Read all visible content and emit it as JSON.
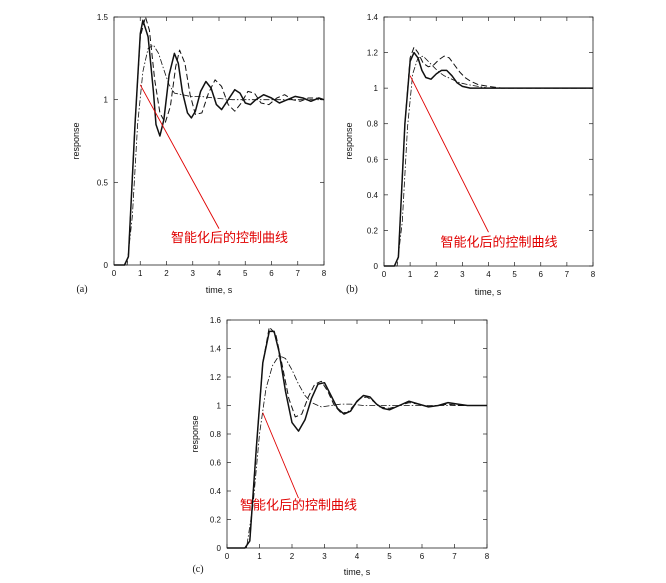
{
  "chart_data": [
    {
      "panel": "(a)",
      "type": "line",
      "xlabel": "time, s",
      "ylabel": "response",
      "xlim": [
        0,
        8
      ],
      "ylim": [
        0,
        1.5
      ],
      "xticks": [
        0,
        1,
        2,
        3,
        4,
        5,
        6,
        7,
        8
      ],
      "yticks": [
        0,
        0.5,
        1,
        1.5
      ],
      "ytick_labels": [
        "0",
        "0.5",
        "1",
        "1.5"
      ],
      "annotation": {
        "text": "智能化后的控制曲线",
        "text_at": [
          4.4,
          0.14
        ],
        "arrow_from": [
          4.0,
          0.22
        ],
        "arrow_to": [
          1.0,
          1.09
        ]
      },
      "series": [
        {
          "style": "solid",
          "width": 1.5,
          "x": [
            0,
            0.4,
            0.55,
            0.8,
            1.0,
            1.1,
            1.3,
            1.5,
            1.6,
            1.75,
            1.9,
            2.1,
            2.3,
            2.45,
            2.6,
            2.8,
            2.95,
            3.1,
            3.3,
            3.5,
            3.7,
            3.9,
            4.1,
            4.35,
            4.6,
            4.8,
            5.0,
            5.2,
            5.4,
            5.7,
            6.0,
            6.3,
            6.6,
            6.9,
            7.2,
            7.5,
            7.8,
            8.0
          ],
          "y": [
            0,
            0,
            0.05,
            0.85,
            1.4,
            1.48,
            1.38,
            1.05,
            0.85,
            0.78,
            0.88,
            1.15,
            1.28,
            1.22,
            1.05,
            0.92,
            0.89,
            0.93,
            1.05,
            1.11,
            1.07,
            0.97,
            0.94,
            1.0,
            1.06,
            1.04,
            0.98,
            0.97,
            1.0,
            1.03,
            1.01,
            0.98,
            1.0,
            1.02,
            1.01,
            0.99,
            1.01,
            1.0
          ]
        },
        {
          "style": "dashed",
          "width": 1.0,
          "x": [
            0,
            0.4,
            0.55,
            0.8,
            1.0,
            1.2,
            1.35,
            1.55,
            1.75,
            1.95,
            2.15,
            2.35,
            2.5,
            2.7,
            2.9,
            3.1,
            3.35,
            3.6,
            3.85,
            4.1,
            4.35,
            4.6,
            4.85,
            5.1,
            5.35,
            5.6,
            5.9,
            6.2,
            6.5,
            6.8,
            7.1,
            7.4,
            7.7,
            8.0
          ],
          "y": [
            0,
            0,
            0.05,
            0.85,
            1.38,
            1.5,
            1.42,
            1.12,
            0.92,
            0.86,
            0.96,
            1.2,
            1.3,
            1.22,
            1.03,
            0.91,
            0.92,
            1.04,
            1.12,
            1.08,
            0.97,
            0.93,
            0.98,
            1.05,
            1.04,
            0.98,
            0.97,
            1.01,
            1.03,
            1.0,
            0.99,
            1.01,
            1.01,
            1.0
          ]
        },
        {
          "style": "dash-dot",
          "width": 0.8,
          "x": [
            0,
            0.5,
            0.7,
            0.9,
            1.1,
            1.3,
            1.5,
            1.7,
            1.9,
            2.1,
            2.3,
            2.6,
            2.9,
            3.3,
            3.8,
            4.5,
            5.5,
            6.5,
            8.0
          ],
          "y": [
            0,
            0,
            0.3,
            0.85,
            1.17,
            1.31,
            1.33,
            1.28,
            1.18,
            1.09,
            1.04,
            1.03,
            1.02,
            1.02,
            1.01,
            1.0,
            1.0,
            1.0,
            1.0
          ]
        }
      ]
    },
    {
      "panel": "(b)",
      "type": "line",
      "xlabel": "time, s",
      "ylabel": "response",
      "xlim": [
        0,
        8
      ],
      "ylim": [
        0,
        1.4
      ],
      "xticks": [
        0,
        1,
        2,
        3,
        4,
        5,
        6,
        7,
        8
      ],
      "yticks": [
        0,
        0.2,
        0.4,
        0.6,
        0.8,
        1.0,
        1.2,
        1.4
      ],
      "ytick_labels": [
        "0",
        "0.2",
        "0.4",
        "0.6",
        "0.8",
        "1",
        "1.2",
        "1.4"
      ],
      "annotation": {
        "text": "智能化后的控制曲线",
        "text_at": [
          4.4,
          0.11
        ],
        "arrow_from": [
          4.0,
          0.19
        ],
        "arrow_to": [
          1.0,
          1.07
        ]
      },
      "series": [
        {
          "style": "solid",
          "width": 1.5,
          "x": [
            0,
            0.4,
            0.55,
            0.8,
            1.0,
            1.15,
            1.3,
            1.45,
            1.6,
            1.8,
            2.0,
            2.2,
            2.4,
            2.6,
            2.8,
            3.0,
            3.3,
            3.7,
            4.2,
            4.8,
            5.5,
            8.0
          ],
          "y": [
            0,
            0,
            0.05,
            0.8,
            1.15,
            1.2,
            1.17,
            1.1,
            1.06,
            1.05,
            1.08,
            1.1,
            1.1,
            1.07,
            1.03,
            1.01,
            1.0,
            1.0,
            1.0,
            1.0,
            1.0,
            1.0
          ]
        },
        {
          "style": "dashed",
          "width": 1.0,
          "x": [
            0,
            0.4,
            0.55,
            0.8,
            1.0,
            1.15,
            1.3,
            1.5,
            1.7,
            1.9,
            2.1,
            2.3,
            2.5,
            2.7,
            2.9,
            3.1,
            3.3,
            3.6,
            4.0,
            4.5,
            5.0,
            5.5,
            8.0
          ],
          "y": [
            0,
            0,
            0.05,
            0.8,
            1.17,
            1.23,
            1.2,
            1.14,
            1.12,
            1.13,
            1.16,
            1.18,
            1.17,
            1.13,
            1.09,
            1.06,
            1.04,
            1.02,
            1.01,
            1.0,
            1.0,
            1.0,
            1.0
          ]
        },
        {
          "style": "dash-dot",
          "width": 0.8,
          "x": [
            0,
            0.5,
            0.7,
            0.9,
            1.1,
            1.3,
            1.5,
            1.7,
            1.9,
            2.1,
            2.3,
            2.6,
            2.9,
            3.2,
            3.6,
            4.0,
            4.5,
            5.0,
            8.0
          ],
          "y": [
            0,
            0,
            0.25,
            0.78,
            1.08,
            1.17,
            1.18,
            1.15,
            1.12,
            1.09,
            1.07,
            1.05,
            1.03,
            1.02,
            1.01,
            1.0,
            1.0,
            1.0,
            1.0
          ]
        }
      ]
    },
    {
      "panel": "(c)",
      "type": "line",
      "xlabel": "time, s",
      "ylabel": "response",
      "xlim": [
        0,
        8
      ],
      "ylim": [
        0,
        1.6
      ],
      "xticks": [
        0,
        1,
        2,
        3,
        4,
        5,
        6,
        7,
        8
      ],
      "yticks": [
        0,
        0.2,
        0.4,
        0.6,
        0.8,
        1.0,
        1.2,
        1.4,
        1.6
      ],
      "ytick_labels": [
        "0",
        "0.2",
        "0.4",
        "0.6",
        "0.8",
        "1",
        "1.2",
        "1.4",
        "1.6"
      ],
      "annotation": {
        "text": "智能化后的控制曲线",
        "text_at": [
          2.2,
          0.27
        ],
        "arrow_from": [
          2.2,
          0.35
        ],
        "arrow_to": [
          1.1,
          0.95
        ]
      },
      "series": [
        {
          "style": "solid",
          "width": 1.5,
          "x": [
            0,
            0.55,
            0.7,
            0.9,
            1.1,
            1.3,
            1.45,
            1.6,
            1.8,
            2.0,
            2.2,
            2.4,
            2.6,
            2.8,
            3.0,
            3.2,
            3.4,
            3.6,
            3.8,
            4.0,
            4.2,
            4.4,
            4.6,
            4.8,
            5.0,
            5.3,
            5.6,
            5.9,
            6.2,
            6.5,
            6.8,
            7.1,
            7.4,
            7.7,
            8.0
          ],
          "y": [
            0,
            0,
            0.05,
            0.7,
            1.3,
            1.52,
            1.52,
            1.38,
            1.1,
            0.88,
            0.82,
            0.9,
            1.05,
            1.15,
            1.16,
            1.07,
            0.98,
            0.94,
            0.96,
            1.03,
            1.07,
            1.06,
            1.01,
            0.98,
            0.97,
            1.0,
            1.03,
            1.01,
            0.99,
            1.0,
            1.02,
            1.01,
            1.0,
            1.0,
            1.0
          ]
        },
        {
          "style": "dashed",
          "width": 1.0,
          "x": [
            0,
            0.55,
            0.7,
            0.9,
            1.1,
            1.3,
            1.5,
            1.7,
            1.9,
            2.1,
            2.3,
            2.5,
            2.7,
            2.9,
            3.1,
            3.3,
            3.5,
            3.7,
            3.9,
            4.1,
            4.3,
            4.5,
            4.7,
            5.0,
            5.3,
            5.6,
            5.9,
            6.2,
            6.5,
            6.8,
            7.1,
            7.4,
            7.7,
            8.0
          ],
          "y": [
            0,
            0,
            0.05,
            0.7,
            1.3,
            1.55,
            1.5,
            1.28,
            1.05,
            0.92,
            0.94,
            1.06,
            1.15,
            1.17,
            1.1,
            1.0,
            0.95,
            0.95,
            1.0,
            1.05,
            1.06,
            1.03,
            0.99,
            0.98,
            1.0,
            1.02,
            1.01,
            0.99,
            1.0,
            1.01,
            1.0,
            1.0,
            1.0,
            1.0
          ]
        },
        {
          "style": "dash-dot",
          "width": 0.8,
          "x": [
            0,
            0.6,
            0.8,
            1.0,
            1.2,
            1.4,
            1.6,
            1.8,
            2.0,
            2.2,
            2.4,
            2.6,
            2.9,
            3.2,
            3.5,
            3.8,
            4.2,
            4.8,
            5.5,
            6.5,
            8.0
          ],
          "y": [
            0,
            0,
            0.3,
            0.8,
            1.12,
            1.28,
            1.35,
            1.33,
            1.25,
            1.15,
            1.07,
            1.02,
            0.99,
            1.0,
            1.01,
            1.01,
            1.0,
            1.0,
            1.0,
            1.0,
            1.0
          ]
        }
      ]
    }
  ]
}
